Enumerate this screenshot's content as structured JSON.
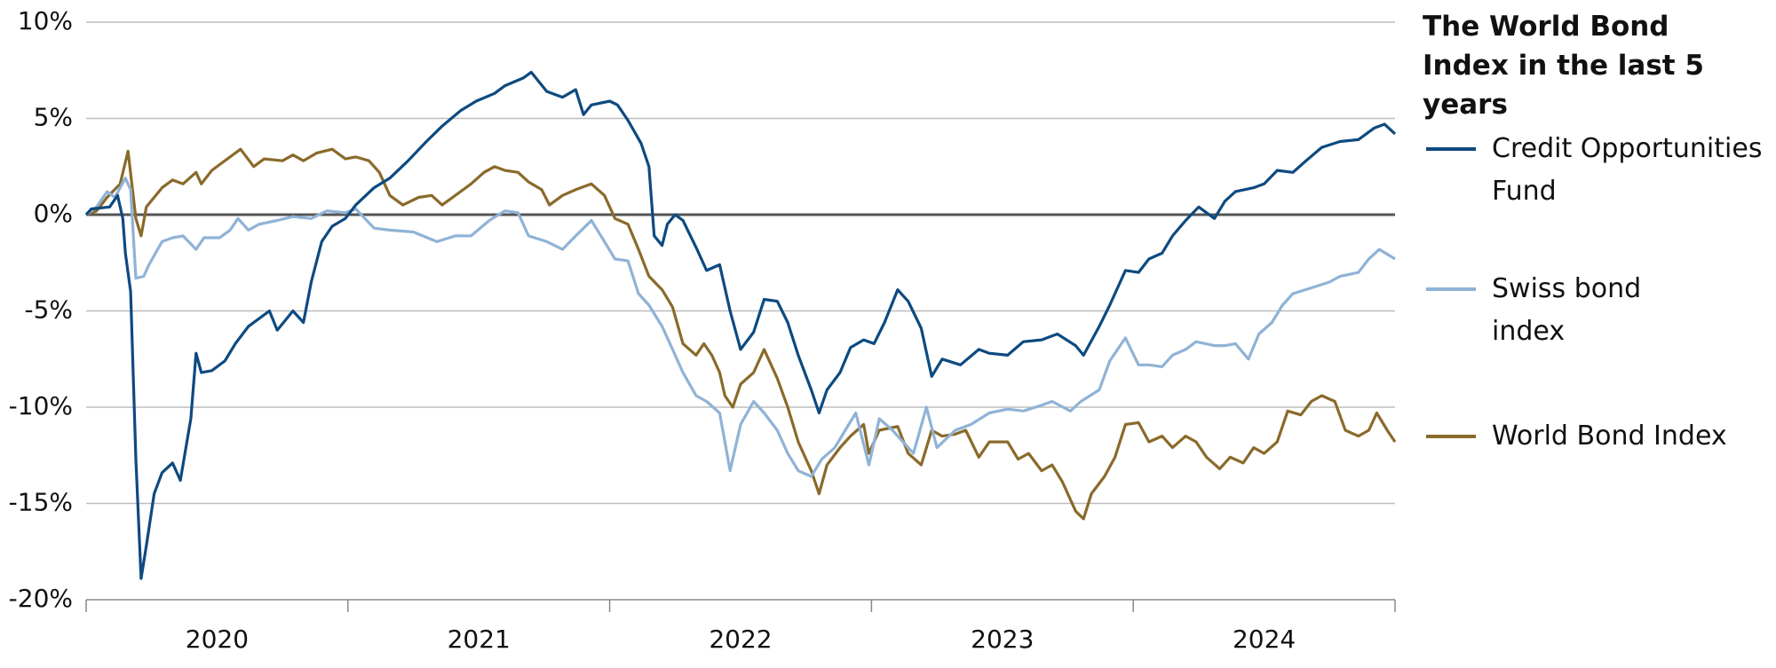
{
  "chart_data": {
    "type": "line",
    "title": "The World Bond Index in the last 5 years",
    "categories": [
      "2020",
      "2021",
      "2022",
      "2023",
      "2024"
    ],
    "xlim": [
      2020,
      2025
    ],
    "xticks": [
      2020,
      2021,
      2022,
      2023,
      2024,
      2025
    ],
    "ylim": [
      -20,
      10
    ],
    "yticks": [
      {
        "value": -20,
        "label": "-20%"
      },
      {
        "value": -15,
        "label": "-15%"
      },
      {
        "value": -10,
        "label": "-10%"
      },
      {
        "value": -5,
        "label": "-5%"
      },
      {
        "value": 0,
        "label": "0%"
      },
      {
        "value": 5,
        "label": "5%"
      },
      {
        "value": 10,
        "label": "10%"
      }
    ],
    "grid": true,
    "legend": "right",
    "series": [
      {
        "name": "Credit Opportunities Fund",
        "color": "#0d4a80",
        "x": [
          2020,
          2020.02,
          2020.09,
          2020.12,
          2020.14,
          2020.15,
          2020.17,
          2020.19,
          2020.21,
          2020.23,
          2020.26,
          2020.29,
          2020.33,
          2020.36,
          2020.4,
          2020.42,
          2020.44,
          2020.48,
          2020.53,
          2020.57,
          2020.62,
          2020.7,
          2020.73,
          2020.79,
          2020.83,
          2020.86,
          2020.9,
          2020.94,
          2020.99,
          2021.03,
          2021.1,
          2021.16,
          2021.23,
          2021.3,
          2021.36,
          2021.43,
          2021.49,
          2021.56,
          2021.6,
          2021.67,
          2021.7,
          2021.76,
          2021.82,
          2021.87,
          2021.9,
          2021.93,
          2022,
          2022.03,
          2022.07,
          2022.12,
          2022.15,
          2022.17,
          2022.2,
          2022.22,
          2022.25,
          2022.28,
          2022.33,
          2022.37,
          2022.42,
          2022.46,
          2022.5,
          2022.55,
          2022.59,
          2022.64,
          2022.68,
          2022.72,
          2022.77,
          2022.8,
          2022.83,
          2022.88,
          2022.92,
          2022.97,
          2023.01,
          2023.05,
          2023.1,
          2023.14,
          2023.19,
          2023.23,
          2023.27,
          2023.34,
          2023.41,
          2023.45,
          2023.52,
          2023.58,
          2023.65,
          2023.71,
          2023.78,
          2023.81,
          2023.87,
          2023.91,
          2023.97,
          2024.02,
          2024.06,
          2024.11,
          2024.15,
          2024.2,
          2024.25,
          2024.31,
          2024.35,
          2024.39,
          2024.46,
          2024.5,
          2024.55,
          2024.61,
          2024.66,
          2024.72,
          2024.79,
          2024.86,
          2024.92,
          2024.96,
          2025
        ],
        "values": [
          0,
          0.3,
          0.4,
          1.0,
          -0.2,
          -2,
          -4,
          -12.7,
          -18.9,
          -17.2,
          -14.5,
          -13.4,
          -12.9,
          -13.8,
          -10.6,
          -7.2,
          -8.2,
          -8.1,
          -7.6,
          -6.7,
          -5.8,
          -5,
          -6,
          -5,
          -5.6,
          -3.5,
          -1.4,
          -0.6,
          -0.2,
          0.5,
          1.4,
          1.9,
          2.8,
          3.8,
          4.6,
          5.4,
          5.9,
          6.3,
          6.7,
          7.1,
          7.4,
          6.4,
          6.1,
          6.5,
          5.2,
          5.7,
          5.9,
          5.7,
          4.9,
          3.7,
          2.5,
          -1.1,
          -1.6,
          -0.5,
          0,
          -0.3,
          -1.7,
          -2.9,
          -2.6,
          -5,
          -7,
          -6.1,
          -4.4,
          -4.5,
          -5.6,
          -7.3,
          -9.1,
          -10.3,
          -9.1,
          -8.2,
          -6.9,
          -6.5,
          -6.7,
          -5.6,
          -3.9,
          -4.5,
          -5.9,
          -8.4,
          -7.5,
          -7.8,
          -7.0,
          -7.2,
          -7.3,
          -6.6,
          -6.5,
          -6.2,
          -6.8,
          -7.3,
          -5.8,
          -4.7,
          -2.9,
          -3.0,
          -2.3,
          -2.0,
          -1.1,
          -0.3,
          0.4,
          -0.2,
          0.7,
          1.2,
          1.4,
          1.6,
          2.3,
          2.2,
          2.8,
          3.5,
          3.8,
          3.9,
          4.5,
          4.7,
          4.2
        ]
      },
      {
        "name": "Swiss bond index",
        "color": "#8fb3d6",
        "x": [
          2020,
          2020.04,
          2020.08,
          2020.11,
          2020.15,
          2020.17,
          2020.19,
          2020.22,
          2020.24,
          2020.29,
          2020.33,
          2020.37,
          2020.42,
          2020.45,
          2020.51,
          2020.55,
          2020.58,
          2020.62,
          2020.66,
          2020.73,
          2020.79,
          2020.86,
          2020.92,
          2020.99,
          2021.03,
          2021.1,
          2021.16,
          2021.25,
          2021.34,
          2021.41,
          2021.47,
          2021.54,
          2021.6,
          2021.65,
          2021.69,
          2021.76,
          2021.82,
          2021.87,
          2021.93,
          2021.98,
          2022.02,
          2022.07,
          2022.11,
          2022.15,
          2022.2,
          2022.24,
          2022.28,
          2022.33,
          2022.37,
          2022.42,
          2022.46,
          2022.5,
          2022.55,
          2022.59,
          2022.64,
          2022.68,
          2022.72,
          2022.77,
          2022.81,
          2022.86,
          2022.9,
          2022.94,
          2022.99,
          2023.03,
          2023.08,
          2023.12,
          2023.16,
          2023.21,
          2023.25,
          2023.32,
          2023.38,
          2023.45,
          2023.52,
          2023.58,
          2023.65,
          2023.69,
          2023.76,
          2023.8,
          2023.87,
          2023.91,
          2023.97,
          2024.02,
          2024.06,
          2024.11,
          2024.15,
          2024.2,
          2024.24,
          2024.31,
          2024.35,
          2024.39,
          2024.44,
          2024.48,
          2024.53,
          2024.57,
          2024.61,
          2024.68,
          2024.75,
          2024.79,
          2024.86,
          2024.9,
          2024.94,
          2025
        ],
        "values": [
          0,
          0.4,
          1.2,
          0.9,
          1.9,
          1.3,
          -3.3,
          -3.2,
          -2.6,
          -1.4,
          -1.2,
          -1.1,
          -1.8,
          -1.2,
          -1.2,
          -0.8,
          -0.2,
          -0.8,
          -0.5,
          -0.3,
          -0.1,
          -0.2,
          0.2,
          0.1,
          0.3,
          -0.7,
          -0.8,
          -0.9,
          -1.4,
          -1.1,
          -1.1,
          -0.3,
          0.2,
          0.1,
          -1.1,
          -1.4,
          -1.8,
          -1.1,
          -0.3,
          -1.4,
          -2.3,
          -2.4,
          -4.1,
          -4.7,
          -5.8,
          -7.0,
          -8.2,
          -9.4,
          -9.7,
          -10.3,
          -13.3,
          -10.9,
          -9.7,
          -10.3,
          -11.2,
          -12.4,
          -13.3,
          -13.6,
          -12.7,
          -12.1,
          -11.2,
          -10.3,
          -13.0,
          -10.6,
          -11.2,
          -11.8,
          -12.4,
          -10.0,
          -12.1,
          -11.2,
          -10.9,
          -10.3,
          -10.1,
          -10.2,
          -9.9,
          -9.7,
          -10.2,
          -9.7,
          -9.1,
          -7.6,
          -6.4,
          -7.8,
          -7.8,
          -7.9,
          -7.3,
          -7.0,
          -6.6,
          -6.8,
          -6.8,
          -6.7,
          -7.5,
          -6.2,
          -5.6,
          -4.7,
          -4.1,
          -3.8,
          -3.5,
          -3.2,
          -3.0,
          -2.3,
          -1.8,
          -2.3
        ]
      },
      {
        "name": "World Bond Index",
        "color": "#8a6a2a",
        "x": [
          2020,
          2020.04,
          2020.08,
          2020.13,
          2020.16,
          2020.19,
          2020.21,
          2020.23,
          2020.29,
          2020.33,
          2020.37,
          2020.42,
          2020.44,
          2020.48,
          2020.55,
          2020.59,
          2020.64,
          2020.68,
          2020.75,
          2020.79,
          2020.83,
          2020.88,
          2020.94,
          2020.99,
          2021.03,
          2021.08,
          2021.12,
          2021.16,
          2021.21,
          2021.27,
          2021.32,
          2021.36,
          2021.43,
          2021.47,
          2021.52,
          2021.56,
          2021.6,
          2021.65,
          2021.69,
          2021.74,
          2021.77,
          2021.82,
          2021.87,
          2021.93,
          2021.98,
          2022.02,
          2022.07,
          2022.11,
          2022.15,
          2022.2,
          2022.24,
          2022.28,
          2022.33,
          2022.36,
          2022.39,
          2022.42,
          2022.44,
          2022.47,
          2022.5,
          2022.55,
          2022.59,
          2022.64,
          2022.68,
          2022.72,
          2022.77,
          2022.8,
          2022.83,
          2022.88,
          2022.92,
          2022.97,
          2022.99,
          2023.03,
          2023.1,
          2023.14,
          2023.19,
          2023.23,
          2023.27,
          2023.32,
          2023.36,
          2023.41,
          2023.45,
          2023.52,
          2023.56,
          2023.6,
          2023.65,
          2023.69,
          2023.73,
          2023.78,
          2023.81,
          2023.84,
          2023.89,
          2023.93,
          2023.97,
          2024.02,
          2024.06,
          2024.11,
          2024.15,
          2024.2,
          2024.24,
          2024.28,
          2024.33,
          2024.37,
          2024.42,
          2024.46,
          2024.5,
          2024.55,
          2024.59,
          2024.64,
          2024.68,
          2024.72,
          2024.77,
          2024.81,
          2024.86,
          2024.9,
          2024.93,
          2024.97,
          2025
        ],
        "values": [
          0,
          0.2,
          0.9,
          1.6,
          3.3,
          -0.2,
          -1.1,
          0.4,
          1.4,
          1.8,
          1.6,
          2.2,
          1.6,
          2.3,
          3.0,
          3.4,
          2.5,
          2.9,
          2.8,
          3.1,
          2.8,
          3.2,
          3.4,
          2.9,
          3.0,
          2.8,
          2.2,
          1.0,
          0.5,
          0.9,
          1.0,
          0.5,
          1.2,
          1.6,
          2.2,
          2.5,
          2.3,
          2.2,
          1.7,
          1.3,
          0.5,
          1.0,
          1.3,
          1.6,
          1.0,
          -0.2,
          -0.5,
          -1.8,
          -3.2,
          -3.9,
          -4.8,
          -6.7,
          -7.3,
          -6.7,
          -7.3,
          -8.2,
          -9.4,
          -10.0,
          -8.8,
          -8.2,
          -7.0,
          -8.5,
          -10.0,
          -11.8,
          -13.3,
          -14.5,
          -13.0,
          -12.1,
          -11.5,
          -10.9,
          -12.4,
          -11.2,
          -11.0,
          -12.4,
          -13.0,
          -11.2,
          -11.5,
          -11.4,
          -11.2,
          -12.6,
          -11.8,
          -11.8,
          -12.7,
          -12.4,
          -13.3,
          -13.0,
          -13.9,
          -15.4,
          -15.8,
          -14.5,
          -13.6,
          -12.6,
          -10.9,
          -10.8,
          -11.8,
          -11.5,
          -12.1,
          -11.5,
          -11.8,
          -12.6,
          -13.2,
          -12.6,
          -12.9,
          -12.1,
          -12.4,
          -11.8,
          -10.2,
          -10.4,
          -9.7,
          -9.4,
          -9.7,
          -11.2,
          -11.5,
          -11.2,
          -10.3,
          -11.2,
          -11.8
        ]
      }
    ]
  }
}
